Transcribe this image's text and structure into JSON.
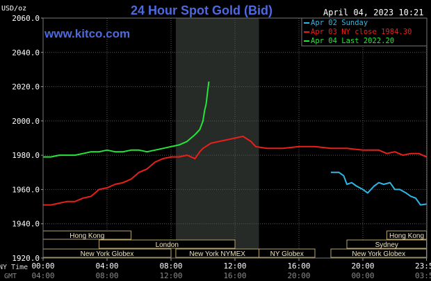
{
  "chart_data": {
    "type": "line",
    "title": "24 Hour Spot Gold (Bid)",
    "source": "www.kitco.com",
    "timestamp": "April 04, 2023 10:21",
    "ylabel": "USD/oz",
    "ylim": [
      1920,
      2060
    ],
    "y_ticks": [
      "2060.0",
      "2040.0",
      "2020.0",
      "2000.0",
      "1980.0",
      "1960.0",
      "1940.0",
      "1920.0"
    ],
    "x_ticks_ny": [
      "00:00",
      "04:00",
      "08:00",
      "12:00",
      "16:00",
      "20:00",
      "23:59"
    ],
    "x_ticks_gmt": [
      "04:00",
      "08:00",
      "12:00",
      "16:00",
      "20:00",
      "00:00",
      "03:59"
    ],
    "ny_time_label": "NY Time",
    "gmt_label": "GMT",
    "legend": [
      {
        "text": "Apr 02 Sunday",
        "color": "#2fb7e6"
      },
      {
        "text": "Apr 03 NY close 1984.30",
        "color": "#e8201b"
      },
      {
        "text": "Apr 04 Last 2022.20",
        "color": "#25e63a"
      }
    ],
    "market_sessions": [
      {
        "name": "Hong Kong",
        "start": 0.0,
        "end": 5.5,
        "row": 0
      },
      {
        "name": "London",
        "start": 3.5,
        "end": 12.0,
        "row": 1
      },
      {
        "name": "New York Globex",
        "start": 0.0,
        "end": 8.0,
        "row": 2
      },
      {
        "name": "New York NYMEX",
        "start": 8.3,
        "end": 13.5,
        "row": 2
      },
      {
        "name": "NY Globex",
        "start": 13.5,
        "end": 17.0,
        "row": 2
      },
      {
        "name": "Hong Kong",
        "start": 21.5,
        "end": 23.98,
        "row": 0
      },
      {
        "name": "Sydney",
        "start": 19.0,
        "end": 23.98,
        "row": 1
      },
      {
        "name": "New York Globex",
        "start": 18.0,
        "end": 23.98,
        "row": 2
      }
    ],
    "highlight_hours": [
      8.3,
      13.5
    ],
    "series": [
      {
        "name": "Apr 02 Sunday",
        "color": "#2fb7e6",
        "x": [
          18.0,
          18.5,
          18.8,
          19.0,
          19.3,
          19.6,
          20.0,
          20.3,
          20.7,
          21.0,
          21.3,
          21.7,
          22.0,
          22.3,
          22.7,
          23.0,
          23.3,
          23.6,
          23.98
        ],
        "y": [
          1970.0,
          1970.0,
          1968.0,
          1963.0,
          1964.0,
          1962.0,
          1960.0,
          1958.0,
          1962.0,
          1964.0,
          1963.0,
          1964.0,
          1960.0,
          1960.0,
          1958.0,
          1956.0,
          1955.0,
          1951.0,
          1951.5
        ]
      },
      {
        "name": "Apr 03 NY close 1984.30",
        "color": "#e8201b",
        "x": [
          0.0,
          0.5,
          1.0,
          1.5,
          2.0,
          2.5,
          3.0,
          3.5,
          4.0,
          4.5,
          5.0,
          5.5,
          6.0,
          6.5,
          7.0,
          7.5,
          8.0,
          8.5,
          9.0,
          9.5,
          9.8,
          10.0,
          10.5,
          11.0,
          11.5,
          12.0,
          12.5,
          13.0,
          13.3,
          14.0,
          15.0,
          16.0,
          17.0,
          18.0,
          19.0,
          20.0,
          21.0,
          21.5,
          22.0,
          22.5,
          23.0,
          23.5,
          23.98
        ],
        "y": [
          1951.0,
          1951.0,
          1952.0,
          1953.0,
          1953.0,
          1955.0,
          1956.0,
          1960.0,
          1961.0,
          1963.0,
          1964.0,
          1966.0,
          1970.0,
          1972.0,
          1976.0,
          1978.0,
          1979.0,
          1979.0,
          1980.0,
          1978.0,
          1982.0,
          1984.0,
          1987.0,
          1988.0,
          1989.0,
          1990.0,
          1991.0,
          1988.0,
          1985.0,
          1984.0,
          1984.0,
          1985.0,
          1985.0,
          1984.0,
          1984.0,
          1983.0,
          1983.0,
          1981.0,
          1982.0,
          1980.0,
          1981.0,
          1981.0,
          1979.0
        ]
      },
      {
        "name": "Apr 04 Last 2022.20",
        "color": "#25e63a",
        "x": [
          0.0,
          0.5,
          1.0,
          1.5,
          2.0,
          2.5,
          3.0,
          3.5,
          4.0,
          4.5,
          5.0,
          5.5,
          6.0,
          6.5,
          7.0,
          7.5,
          8.0,
          8.5,
          9.0,
          9.5,
          9.8,
          10.0,
          10.1,
          10.2,
          10.3,
          10.37
        ],
        "y": [
          1979.0,
          1979.0,
          1980.0,
          1980.0,
          1980.0,
          1981.0,
          1982.0,
          1982.0,
          1983.0,
          1982.0,
          1982.0,
          1983.0,
          1983.0,
          1982.0,
          1983.0,
          1984.0,
          1985.0,
          1986.0,
          1988.0,
          1992.0,
          1995.0,
          2000.0,
          2006.0,
          2010.0,
          2018.0,
          2023.0
        ]
      }
    ]
  }
}
